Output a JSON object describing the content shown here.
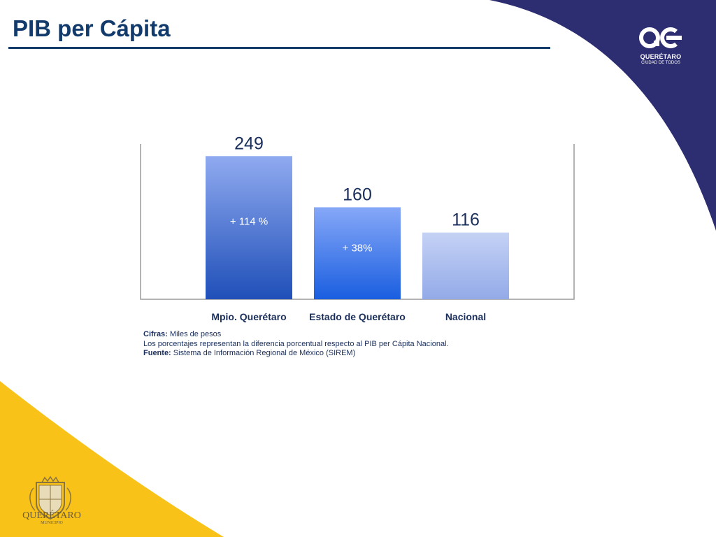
{
  "page": {
    "title": "PIB per Cápita",
    "colors": {
      "navy": "#2d2d72",
      "yellow": "#f9c219",
      "title": "#123a6b"
    }
  },
  "brand": {
    "logo_icon": "qc-logo-icon",
    "name": "QUERÉTARO",
    "sub": "CIUDAD DE TODOS"
  },
  "seal": {
    "icon": "queretaro-coat-of-arms-icon",
    "name": "QUERÉTARO",
    "sub": "MUNICIPIO"
  },
  "chart_data": {
    "type": "bar",
    "categories": [
      "Mpio. Querétaro",
      "Estado de Querétaro",
      "Nacional"
    ],
    "values": [
      249,
      160,
      116
    ],
    "value_labels": [
      "249",
      "160",
      "116"
    ],
    "bar_annotations": [
      "+ 114 %",
      "+ 38%",
      ""
    ],
    "ylim": [
      0,
      270
    ],
    "grid": false,
    "legend": "none",
    "title": "",
    "xlabel": "",
    "ylabel": ""
  },
  "notes": {
    "cifras_label": "Cifras:",
    "cifras_text": " Miles de pesos",
    "porcentajes_text": "Los porcentajes representan la diferencia porcentual respecto al PIB per Cápita Nacional.",
    "fuente_label": "Fuente:",
    "fuente_text": " Sistema de Información Regional de México (SIREM)"
  }
}
